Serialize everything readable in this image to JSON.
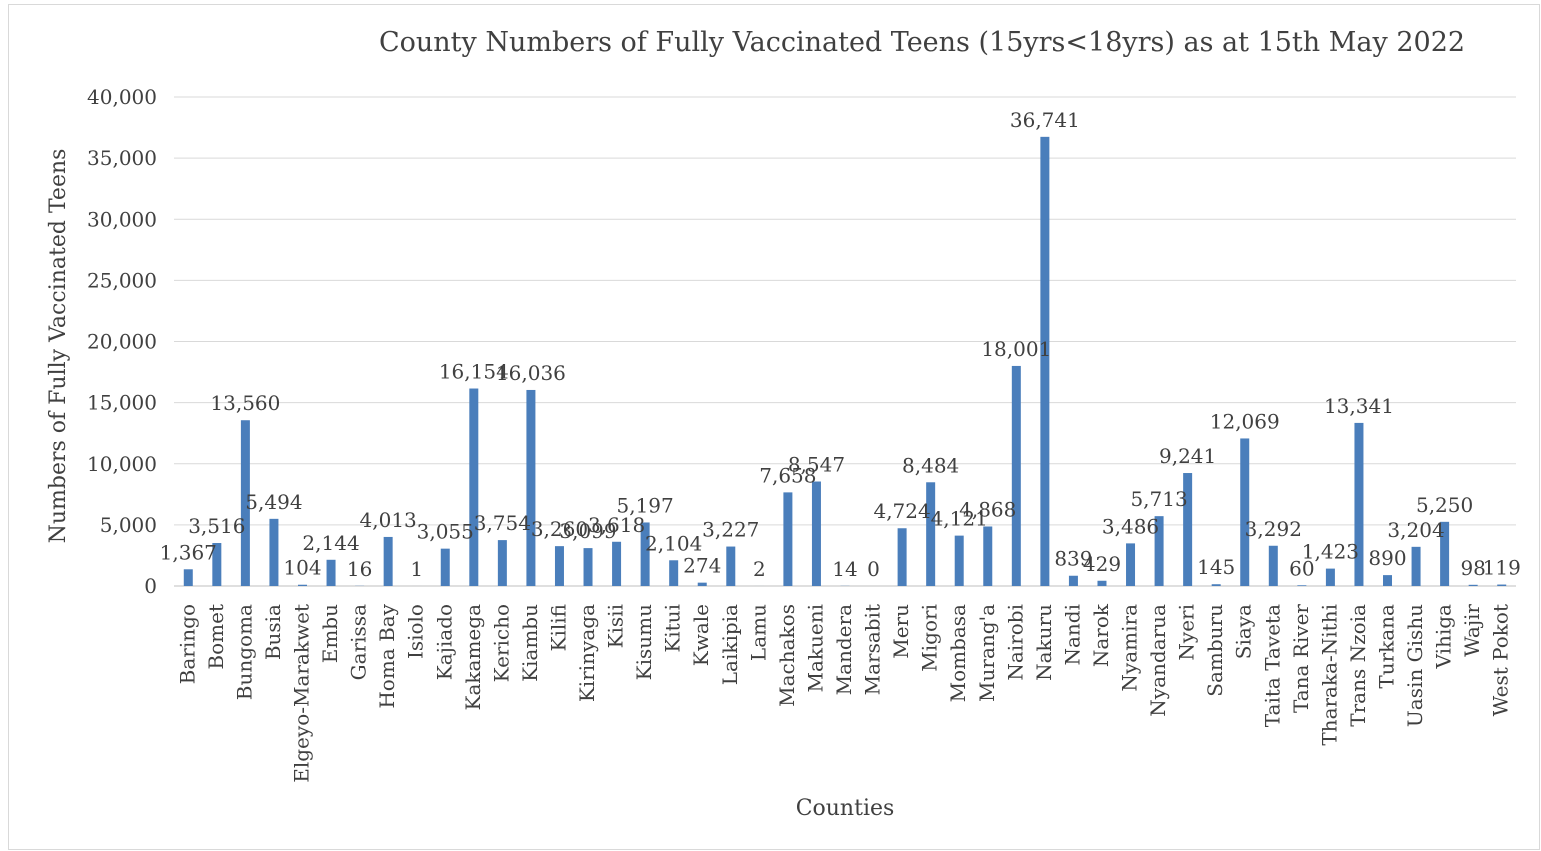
{
  "chart_data": {
    "type": "bar",
    "title": "County Numbers of Fully Vaccinated Teens (15yrs<18yrs) as at 15th May 2022",
    "xlabel": "Counties",
    "ylabel": "Numbers of Fully Vaccinated Teens",
    "ylim": [
      0,
      40000
    ],
    "yticks": [
      "0",
      "5,000",
      "10,000",
      "15,000",
      "20,000",
      "25,000",
      "30,000",
      "35,000",
      "40,000"
    ],
    "grid": true,
    "legend": "none",
    "bar_color": "#4a7ebb",
    "categories": [
      "Baringo",
      "Bomet",
      "Bungoma",
      "Busia",
      "Elgeyo-Marakwet",
      "Embu",
      "Garissa",
      "Homa Bay",
      "Isiolo",
      "Kajiado",
      "Kakamega",
      "Kericho",
      "Kiambu",
      "Kilifi",
      "Kirinyaga",
      "Kisii",
      "Kisumu",
      "Kitui",
      "Kwale",
      "Laikipia",
      "Lamu",
      "Machakos",
      "Makueni",
      "Mandera",
      "Marsabit",
      "Meru",
      "Migori",
      "Mombasa",
      "Murang'a",
      "Nairobi",
      "Nakuru",
      "Nandi",
      "Narok",
      "Nyamira",
      "Nyandarua",
      "Nyeri",
      "Samburu",
      "Siaya",
      "Taita Taveta",
      "Tana River",
      "Tharaka-Nithi",
      "Trans Nzoia",
      "Turkana",
      "Uasin Gishu",
      "Vihiga",
      "Wajir",
      "West Pokot"
    ],
    "values": [
      1367,
      3516,
      13560,
      5494,
      104,
      2144,
      16,
      4013,
      1,
      3055,
      16154,
      3754,
      16036,
      3260,
      3099,
      3618,
      5197,
      2104,
      274,
      3227,
      2,
      7658,
      8547,
      14,
      0,
      4724,
      8484,
      4121,
      4868,
      18001,
      36741,
      839,
      429,
      3486,
      5713,
      9241,
      145,
      12069,
      3292,
      60,
      1423,
      13341,
      890,
      3204,
      5250,
      98,
      119
    ],
    "data_labels": [
      "1,367",
      "3,516",
      "13,560",
      "5,494",
      "104",
      "2,144",
      "16",
      "4,013",
      "1",
      "3,055",
      "16,154",
      "3,754",
      "16,036",
      "3,260",
      "3,099",
      "3,618",
      "5,197",
      "2,104",
      "274",
      "3,227",
      "2",
      "7,658",
      "8,547",
      "14",
      "0",
      "4,724",
      "8,484",
      "4,121",
      "4,868",
      "18,001",
      "36,741",
      "839",
      "429",
      "3,486",
      "5,713",
      "9,241",
      "145",
      "12,069",
      "3,292",
      "60",
      "1,423",
      "13,341",
      "890",
      "3,204",
      "5,250",
      "98",
      "119"
    ]
  }
}
